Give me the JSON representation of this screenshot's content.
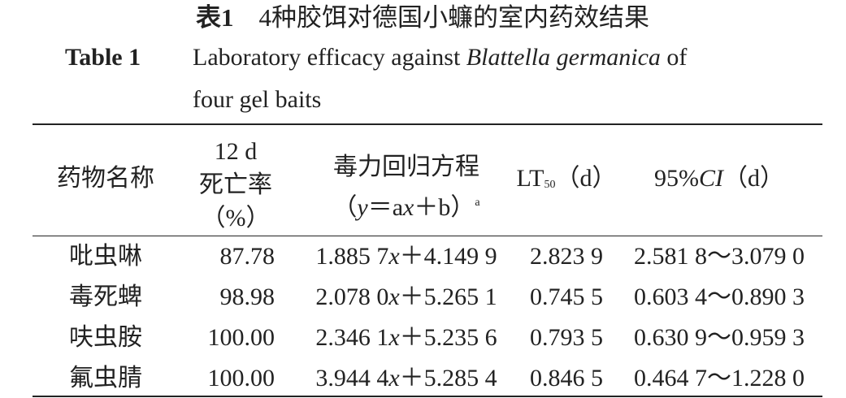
{
  "title": {
    "label": "表1",
    "text": "4种胶饵对德国小蠊的室内药效结果"
  },
  "caption": {
    "label": "Table 1",
    "text_before": "Laboratory efficacy against",
    "species": "Blattella germanica",
    "text_after": "of",
    "line2": "four gel baits"
  },
  "table": {
    "headers": [
      {
        "lines": [
          "药物名称"
        ]
      },
      {
        "lines": [
          "12 d",
          "死亡率",
          "（%）"
        ]
      },
      {
        "line1": "毒力回归方程",
        "parts": [
          "（",
          "y",
          "＝a",
          "x",
          "＋b）",
          "a"
        ]
      },
      {
        "parts": [
          "LT",
          "50",
          "（d）"
        ]
      },
      {
        "parts": [
          "95%",
          "CI",
          "（d）"
        ]
      }
    ],
    "rows": [
      {
        "name": "吡虫啉",
        "mortality": "87.78",
        "equation": [
          "1.885 7",
          "x",
          "＋4.149 9"
        ],
        "lt50": "2.823 9",
        "ci": "2.581 8～3.079 0"
      },
      {
        "name": "毒死蜱",
        "mortality": "98.98",
        "equation": [
          "2.078 0",
          "x",
          "＋5.265 1"
        ],
        "lt50": "0.745 5",
        "ci": "0.603 4～0.890 3"
      },
      {
        "name": "呋虫胺",
        "mortality": "100.00",
        "equation": [
          "2.346 1",
          "x",
          "＋5.235 6"
        ],
        "lt50": "0.793 5",
        "ci": "0.630 9～0.959 3"
      },
      {
        "name": "氟虫腈",
        "mortality": "100.00",
        "equation": [
          "3.944 4",
          "x",
          "＋5.285 4"
        ],
        "lt50": "0.846 5",
        "ci": "0.464 7～1.228 0"
      }
    ]
  }
}
